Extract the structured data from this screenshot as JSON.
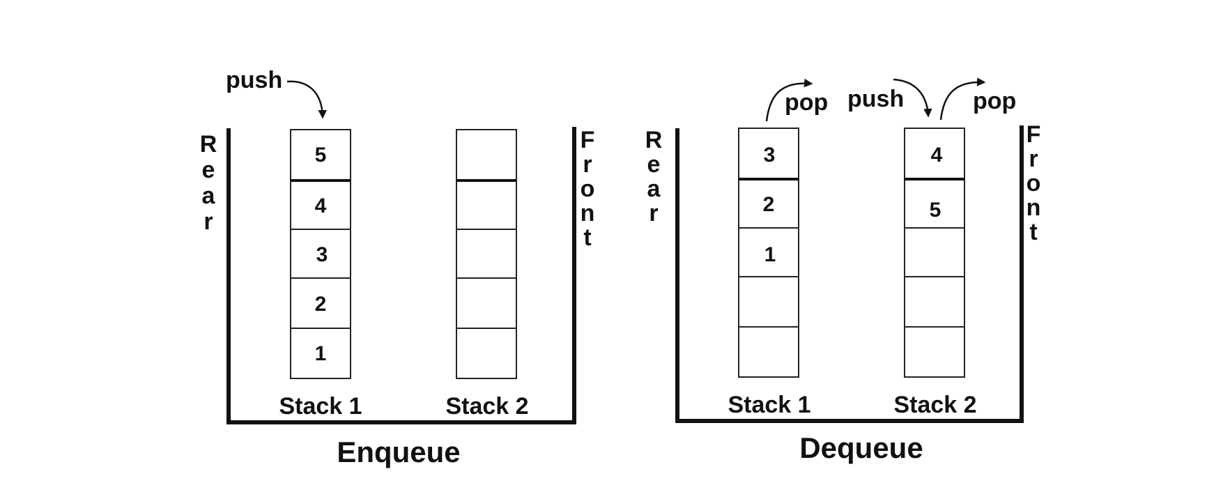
{
  "enqueue": {
    "title": "Enqueue",
    "rear_label": "Rear",
    "front_label": "Front",
    "push_label": "push",
    "stack1": {
      "label": "Stack 1",
      "cells": [
        "5",
        "4",
        "3",
        "2",
        "1"
      ]
    },
    "stack2": {
      "label": "Stack 2",
      "cells": [
        "",
        "",
        "",
        "",
        ""
      ]
    }
  },
  "dequeue": {
    "title": "Dequeue",
    "rear_label": "Rear",
    "front_label": "Front",
    "pop1_label": "pop",
    "push_label": "push",
    "pop2_label": "pop",
    "stack1": {
      "label": "Stack 1",
      "cells": [
        "3",
        "2",
        "1",
        "",
        ""
      ]
    },
    "stack2": {
      "label": "Stack 2",
      "cells": [
        "4",
        "5",
        "",
        "",
        ""
      ]
    }
  }
}
